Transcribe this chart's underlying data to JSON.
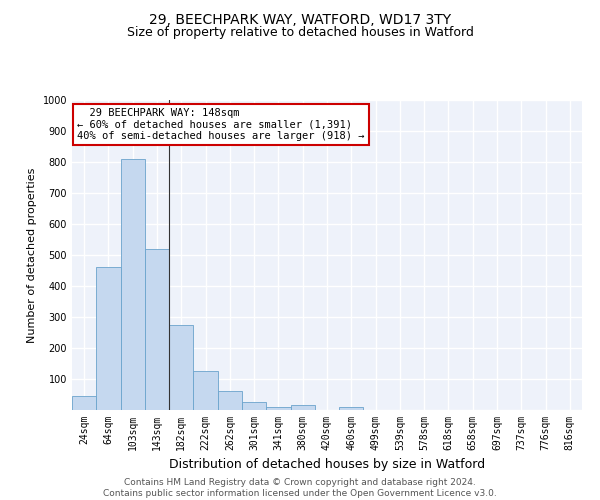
{
  "title": "29, BEECHPARK WAY, WATFORD, WD17 3TY",
  "subtitle": "Size of property relative to detached houses in Watford",
  "xlabel": "Distribution of detached houses by size in Watford",
  "ylabel": "Number of detached properties",
  "categories": [
    "24sqm",
    "64sqm",
    "103sqm",
    "143sqm",
    "182sqm",
    "222sqm",
    "262sqm",
    "301sqm",
    "341sqm",
    "380sqm",
    "420sqm",
    "460sqm",
    "499sqm",
    "539sqm",
    "578sqm",
    "618sqm",
    "658sqm",
    "697sqm",
    "737sqm",
    "776sqm",
    "816sqm"
  ],
  "values": [
    45,
    460,
    810,
    520,
    275,
    125,
    60,
    25,
    10,
    15,
    0,
    10,
    0,
    0,
    0,
    0,
    0,
    0,
    0,
    0,
    0
  ],
  "bar_color": "#c5d8ef",
  "bar_edge_color": "#6aa3cc",
  "property_line_index": 3.5,
  "annotation_text": "  29 BEECHPARK WAY: 148sqm\n← 60% of detached houses are smaller (1,391)\n40% of semi-detached houses are larger (918) →",
  "annotation_box_color": "#ffffff",
  "annotation_box_edge_color": "#cc0000",
  "ylim": [
    0,
    1000
  ],
  "yticks": [
    0,
    100,
    200,
    300,
    400,
    500,
    600,
    700,
    800,
    900,
    1000
  ],
  "background_color": "#eef2fa",
  "grid_color": "#ffffff",
  "footer_line1": "Contains HM Land Registry data © Crown copyright and database right 2024.",
  "footer_line2": "Contains public sector information licensed under the Open Government Licence v3.0.",
  "title_fontsize": 10,
  "subtitle_fontsize": 9,
  "annotation_fontsize": 7.5,
  "ylabel_fontsize": 8,
  "xlabel_fontsize": 9,
  "footer_fontsize": 6.5,
  "tick_fontsize": 7
}
